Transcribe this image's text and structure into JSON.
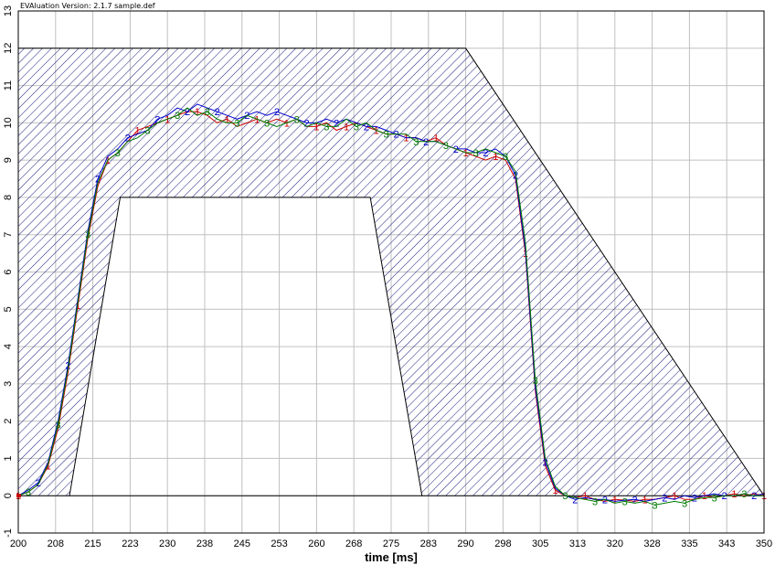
{
  "header_text": "EVAluation Version: 2.1.7 sample.def",
  "colors": {
    "series1": "#cc0000",
    "series2": "#0000cc",
    "series3": "#007a00",
    "hatch": "#1a1a80",
    "grid": "#c0c0c0"
  },
  "chart_data": {
    "type": "line",
    "title": "",
    "xlabel": "time [ms]",
    "ylabel": "",
    "xlim": [
      200,
      350
    ],
    "ylim": [
      -1,
      13
    ],
    "grid": true,
    "x_tick_labels": [
      "200",
      "208",
      "215",
      "223",
      "230",
      "238",
      "245",
      "253",
      "260",
      "268",
      "275",
      "283",
      "290",
      "298",
      "305",
      "313",
      "320",
      "328",
      "335",
      "343",
      "350"
    ],
    "y_tick_labels": [
      "-1",
      "0",
      "1",
      "2",
      "3",
      "4",
      "5",
      "6",
      "7",
      "8",
      "9",
      "10",
      "11",
      "12",
      "13"
    ],
    "tolerance_band": {
      "upper": [
        [
          200,
          0
        ],
        [
          200,
          12
        ],
        [
          290,
          12
        ],
        [
          350,
          0
        ]
      ],
      "lower": [
        [
          210.3,
          0
        ],
        [
          220.5,
          8
        ],
        [
          270.8,
          8
        ],
        [
          281.2,
          0
        ]
      ]
    },
    "series": [
      {
        "name": "1",
        "x": [
          200,
          202,
          204,
          206,
          208,
          210,
          212,
          214,
          216,
          218,
          220,
          222,
          224,
          226,
          228,
          230,
          232,
          234,
          236,
          238,
          240,
          242,
          244,
          246,
          248,
          250,
          252,
          254,
          256,
          258,
          260,
          262,
          264,
          266,
          268,
          270,
          272,
          274,
          276,
          278,
          280,
          282,
          284,
          286,
          288,
          290,
          292,
          294,
          296,
          298,
          300,
          302,
          304,
          306,
          308,
          310,
          312,
          314,
          316,
          318,
          320,
          322,
          324,
          326,
          328,
          330,
          332,
          334,
          336,
          338,
          340,
          342,
          344,
          346,
          348,
          350
        ],
        "y": [
          0,
          0.1,
          0.3,
          0.8,
          1.8,
          3.3,
          5.1,
          6.9,
          8.3,
          9.0,
          9.2,
          9.5,
          9.8,
          9.9,
          10.0,
          10.1,
          10.2,
          10.3,
          10.3,
          10.2,
          10.0,
          10.1,
          9.9,
          10.0,
          10.1,
          10.0,
          10.1,
          10.0,
          10.1,
          9.9,
          9.9,
          10.0,
          9.8,
          9.9,
          10.0,
          9.9,
          9.8,
          9.7,
          9.7,
          9.6,
          9.6,
          9.5,
          9.6,
          9.4,
          9.3,
          9.2,
          9.1,
          9.0,
          9.1,
          9.0,
          8.5,
          6.5,
          2.8,
          0.8,
          0.15,
          0.0,
          -0.05,
          0.0,
          -0.1,
          -0.15,
          -0.1,
          -0.12,
          -0.15,
          -0.1,
          -0.1,
          -0.05,
          0.0,
          -0.1,
          -0.1,
          0.0,
          -0.05,
          0.0,
          0.05,
          0.0,
          0.05,
          0.0
        ]
      },
      {
        "name": "2",
        "x": [
          200,
          202,
          204,
          206,
          208,
          210,
          212,
          214,
          216,
          218,
          220,
          222,
          224,
          226,
          228,
          230,
          232,
          234,
          236,
          238,
          240,
          242,
          244,
          246,
          248,
          250,
          252,
          254,
          256,
          258,
          260,
          262,
          264,
          266,
          268,
          270,
          272,
          274,
          276,
          278,
          280,
          282,
          284,
          286,
          288,
          290,
          292,
          294,
          296,
          298,
          300,
          302,
          304,
          306,
          308,
          310,
          312,
          314,
          316,
          318,
          320,
          322,
          324,
          326,
          328,
          330,
          332,
          334,
          336,
          338,
          340,
          342,
          344,
          346,
          348,
          350
        ],
        "y": [
          0,
          0.15,
          0.35,
          0.9,
          2.0,
          3.5,
          5.3,
          7.1,
          8.5,
          9.1,
          9.3,
          9.6,
          9.7,
          9.8,
          10.1,
          10.2,
          10.4,
          10.3,
          10.5,
          10.4,
          10.3,
          10.2,
          10.1,
          10.2,
          10.3,
          10.2,
          10.3,
          10.2,
          10.1,
          10.0,
          10.0,
          10.1,
          10.0,
          10.1,
          10.0,
          9.9,
          9.9,
          9.8,
          9.7,
          9.6,
          9.6,
          9.5,
          9.5,
          9.4,
          9.3,
          9.3,
          9.2,
          9.2,
          9.3,
          9.1,
          8.6,
          6.6,
          2.9,
          0.9,
          0.2,
          0.0,
          -0.1,
          -0.05,
          -0.1,
          -0.1,
          -0.15,
          -0.12,
          -0.1,
          -0.15,
          -0.1,
          -0.05,
          -0.1,
          0.0,
          -0.05,
          0.0,
          0.05,
          0.0,
          0.0,
          0.05,
          0.0,
          0.05
        ]
      },
      {
        "name": "3",
        "x": [
          200,
          202,
          204,
          206,
          208,
          210,
          212,
          214,
          216,
          218,
          220,
          222,
          224,
          226,
          228,
          230,
          232,
          234,
          236,
          238,
          240,
          242,
          244,
          246,
          248,
          250,
          252,
          254,
          256,
          258,
          260,
          262,
          264,
          266,
          268,
          270,
          272,
          274,
          276,
          278,
          280,
          282,
          284,
          286,
          288,
          290,
          292,
          294,
          296,
          298,
          300,
          302,
          304,
          306,
          308,
          310,
          312,
          314,
          316,
          318,
          320,
          322,
          324,
          326,
          328,
          330,
          332,
          334,
          336,
          338,
          340,
          342,
          344,
          346,
          348,
          350
        ],
        "y": [
          0,
          0.1,
          0.3,
          0.85,
          1.9,
          3.4,
          5.2,
          7.0,
          8.4,
          9.0,
          9.2,
          9.5,
          9.6,
          9.8,
          10.0,
          10.1,
          10.2,
          10.4,
          10.2,
          10.3,
          10.1,
          10.0,
          10.0,
          10.2,
          10.1,
          10.0,
          9.9,
          10.0,
          10.1,
          9.9,
          10.0,
          9.9,
          9.9,
          10.1,
          9.9,
          10.0,
          9.8,
          9.7,
          9.7,
          9.7,
          9.5,
          9.5,
          9.5,
          9.4,
          9.3,
          9.2,
          9.2,
          9.3,
          9.2,
          9.1,
          8.7,
          6.8,
          3.1,
          1.0,
          0.25,
          0.0,
          -0.05,
          -0.1,
          -0.15,
          -0.1,
          -0.2,
          -0.15,
          -0.2,
          -0.15,
          -0.25,
          -0.2,
          -0.15,
          -0.2,
          -0.1,
          -0.05,
          -0.05,
          0.0,
          0.0,
          0.05,
          0.0,
          0.0
        ]
      }
    ]
  }
}
